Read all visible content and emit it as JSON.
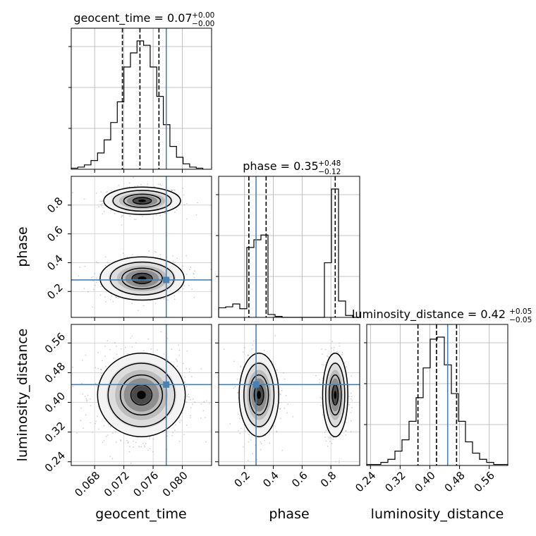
{
  "chart_data": {
    "type": "corner",
    "parameters": [
      "geocent_time",
      "phase",
      "luminosity_distance"
    ],
    "axis_labels": {
      "geocent_time": "geocent_time",
      "phase": "phase",
      "luminosity_distance": "luminosity_distance"
    },
    "ranges": {
      "geocent_time": [
        0.0648,
        0.084
      ],
      "phase": [
        0.02,
        1.0
      ],
      "luminosity_distance": [
        0.23,
        0.61
      ]
    },
    "ticks": {
      "geocent_time": [
        0.068,
        0.072,
        0.076,
        0.08
      ],
      "phase": [
        0.2,
        0.4,
        0.6,
        0.8
      ],
      "luminosity_distance": [
        0.24,
        0.32,
        0.4,
        0.48,
        0.56
      ]
    },
    "tick_labels": {
      "geocent_time": [
        "0.068",
        "0.072",
        "0.076",
        "0.080"
      ],
      "phase": [
        "0.2",
        "0.4",
        "0.6",
        "0.8"
      ],
      "luminosity_distance": [
        "0.24",
        "0.32",
        "0.40",
        "0.48",
        "0.56"
      ]
    },
    "truths": {
      "geocent_time": 0.0778,
      "phase": 0.28,
      "luminosity_distance": 0.448
    },
    "titles": [
      {
        "param": "geocent_time",
        "text": "geocent_time = 0.07",
        "plus": "+0.00",
        "minus": "−0.00"
      },
      {
        "param": "phase",
        "text": "phase = 0.35",
        "plus": "+0.48",
        "minus": "−0.12"
      },
      {
        "param": "luminosity_distance",
        "text": "luminosity_distance = 0.42",
        "plus": "+0.05",
        "minus": "−0.05"
      }
    ],
    "quantiles": {
      "geocent_time": [
        0.0718,
        0.0742,
        0.0768
      ],
      "phase": [
        0.23,
        0.35,
        0.83
      ],
      "luminosity_distance": [
        0.368,
        0.418,
        0.472
      ]
    },
    "histograms": {
      "geocent_time": {
        "edges_start": 0.0648,
        "bin_width": 0.0009,
        "counts": [
          1,
          2,
          4,
          8,
          15,
          27,
          43,
          62,
          94,
          107,
          118,
          114,
          94,
          67,
          41,
          21,
          11,
          5,
          2,
          1
        ]
      },
      "phase": {
        "edges_start": 0.02,
        "bin_width": 0.049,
        "counts": [
          10,
          11,
          14,
          9,
          73,
          81,
          86,
          3,
          1,
          0,
          0,
          0,
          0,
          0,
          0,
          57,
          134,
          17,
          2,
          0
        ]
      },
      "luminosity_distance": {
        "edges_start": 0.23,
        "bin_width": 0.019,
        "counts": [
          1,
          1,
          3,
          6,
          14,
          25,
          43,
          66,
          95,
          123,
          125,
          98,
          70,
          43,
          23,
          12,
          6,
          3,
          1,
          1
        ]
      }
    },
    "grid": true,
    "truth_color": "#4682b4",
    "hist_color": "#000000"
  }
}
